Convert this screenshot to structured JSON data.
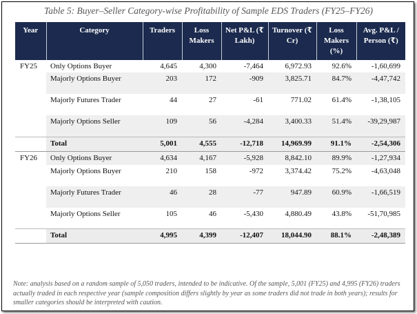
{
  "caption": "Table 5: Buyer–Seller Category-wise Profitability of Sample EDS Traders (FY25–FY26)",
  "headers": [
    "Year",
    "Category",
    "Traders",
    "Loss Makers",
    "Net P&L (₹ Lakh)",
    "Turnover (₹ Cr)",
    "Loss Makers (%)",
    "Avg. P&L / Person (₹)"
  ],
  "rows": [
    {
      "year": "FY25",
      "category": "Only Options Buyer",
      "traders": "4,645",
      "loss_makers": "4,300",
      "net_pl": "-7,464",
      "turnover": "6,972.93",
      "loss_pct": "92.6%",
      "avg_pl": "-1,60,699"
    },
    {
      "year": "",
      "category": "Majorly Options Buyer",
      "traders": "203",
      "loss_makers": "172",
      "net_pl": "-909",
      "turnover": "3,825.71",
      "loss_pct": "84.7%",
      "avg_pl": "-4,47,742"
    },
    {
      "year": "",
      "category": "Majorly Futures Trader",
      "traders": "44",
      "loss_makers": "27",
      "net_pl": "-61",
      "turnover": "771.02",
      "loss_pct": "61.4%",
      "avg_pl": "-1,38,105"
    },
    {
      "year": "",
      "category": "Majorly Options Seller",
      "traders": "109",
      "loss_makers": "56",
      "net_pl": "-4,284",
      "turnover": "3,400.33",
      "loss_pct": "51.4%",
      "avg_pl": "-39,29,987"
    },
    {
      "year": "",
      "category": "Total",
      "traders": "5,001",
      "loss_makers": "4,555",
      "net_pl": "-12,718",
      "turnover": "14,969.99",
      "loss_pct": "91.1%",
      "avg_pl": "-2,54,306",
      "total": true
    },
    {
      "year": "FY26",
      "category": "Only Options Buyer",
      "traders": "4,634",
      "loss_makers": "4,167",
      "net_pl": "-5,928",
      "turnover": "8,842.10",
      "loss_pct": "89.9%",
      "avg_pl": "-1,27,934"
    },
    {
      "year": "",
      "category": "Majorly Options Buyer",
      "traders": "210",
      "loss_makers": "158",
      "net_pl": "-972",
      "turnover": "3,374.42",
      "loss_pct": "75.2%",
      "avg_pl": "-4,63,048"
    },
    {
      "year": "",
      "category": "Majorly Futures Trader",
      "traders": "46",
      "loss_makers": "28",
      "net_pl": "-77",
      "turnover": "947.89",
      "loss_pct": "60.9%",
      "avg_pl": "-1,66,519"
    },
    {
      "year": "",
      "category": "Majorly Options Seller",
      "traders": "105",
      "loss_makers": "46",
      "net_pl": "-5,430",
      "turnover": "4,880.49",
      "loss_pct": "43.8%",
      "avg_pl": "-51,70,985"
    },
    {
      "year": "",
      "category": "Total",
      "traders": "4,995",
      "loss_makers": "4,399",
      "net_pl": "-12,407",
      "turnover": "18,044.90",
      "loss_pct": "88.1%",
      "avg_pl": "-2,48,389",
      "total": true
    }
  ],
  "note": "Note: analysis based on a random sample of 5,050 traders, intended to be indicative. Of the sample, 5,001 (FY25) and 4,995 (FY26) traders actually traded in each respective year (sample composition differs slightly by year as some traders did not trade in both years); results for smaller categories should be interpreted with caution.",
  "colors": {
    "header_bg": "#1b2a4e",
    "header_text": "#ffffff",
    "shade": "#efefef"
  }
}
